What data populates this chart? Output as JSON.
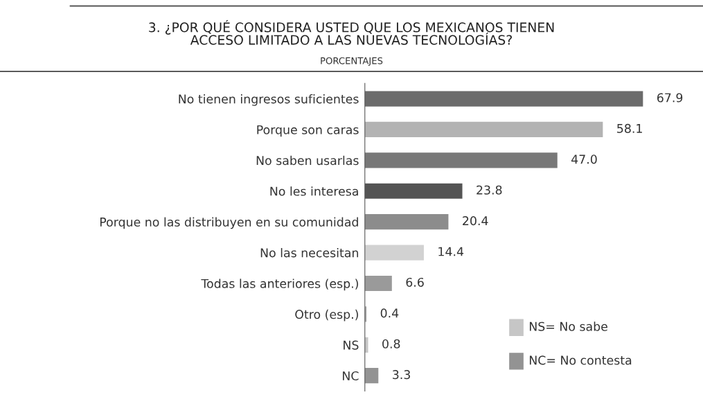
{
  "chart_data": {
    "type": "bar",
    "orientation": "horizontal",
    "title": "3. ¿POR QUÉ CONSIDERA USTED QUE LOS MEXICANOS TIENEN\nACCESO LIMITADO A LAS NUEVAS TECNOLOGÍAS?",
    "subtitle": "PORCENTAJES",
    "categories": [
      "No tienen ingresos suficientes",
      "Porque son caras",
      "No saben usarlas",
      "No les interesa",
      "Porque no las distribuyen en su comunidad",
      "No las necesitan",
      "Todas las anteriores (esp.)",
      "Otro (esp.)",
      "NS",
      "NC"
    ],
    "values": [
      67.9,
      58.1,
      47.0,
      23.8,
      20.4,
      14.4,
      6.6,
      0.4,
      0.8,
      3.3
    ],
    "value_labels": [
      "67.9",
      "58.1",
      "47.0",
      "23.8",
      "20.4",
      "14.4",
      "6.6",
      "0.4",
      "0.8",
      "3.3"
    ],
    "colors": [
      "#6b6b6b",
      "#b3b3b3",
      "#787878",
      "#545454",
      "#8c8c8c",
      "#d2d2d2",
      "#9a9a9a",
      "#a5a5a5",
      "#c6c6c6",
      "#939393"
    ],
    "annotations": [
      "NS= No sabe",
      "NC= No contesta"
    ],
    "grid": false,
    "legend": false
  }
}
